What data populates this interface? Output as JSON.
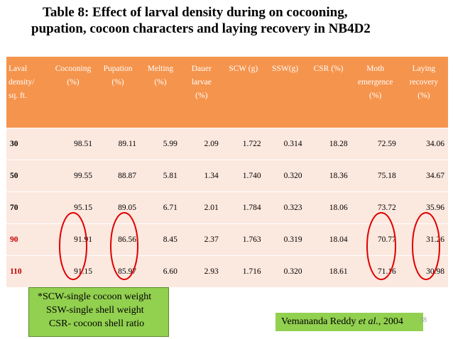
{
  "title": {
    "line1": "Table 8: Effect of larval density during on cocooning,",
    "line2": "pupation, cocoon characters and laying recovery in NB4D2"
  },
  "table": {
    "headers": [
      [
        "Laval",
        "density/",
        "sq. ft."
      ],
      [
        "Cocooning",
        "(%)"
      ],
      [
        "Pupation",
        "(%)"
      ],
      [
        "Melting",
        "(%)"
      ],
      [
        "Dauer",
        "larvae",
        "(%)"
      ],
      [
        "SCW (g)"
      ],
      [
        "SSW(g)"
      ],
      [
        "CSR (%)"
      ],
      [
        "Moth",
        "emergence",
        "(%)"
      ],
      [
        "Laying",
        "recovery",
        "(%)"
      ]
    ],
    "rows": [
      [
        "30",
        "98.51",
        "89.11",
        "5.99",
        "2.09",
        "1.722",
        "0.314",
        "18.28",
        "72.59",
        "34.06"
      ],
      [
        "50",
        "99.55",
        "88.87",
        "5.81",
        "1.34",
        "1.740",
        "0.320",
        "18.36",
        "75.18",
        "34.67"
      ],
      [
        "70",
        "95.15",
        "89.05",
        "6.71",
        "2.01",
        "1.784",
        "0.323",
        "18.06",
        "73.72",
        "35.96"
      ],
      [
        "90",
        "91.91",
        "86.56",
        "8.45",
        "2.37",
        "1.763",
        "0.319",
        "18.04",
        "70.77",
        "31.26"
      ],
      [
        "110",
        "91.15",
        "85.97",
        "6.60",
        "2.93",
        "1.716",
        "0.320",
        "18.61",
        "71.16",
        "30.98"
      ]
    ],
    "highlight_rows": [
      "90",
      "110"
    ]
  },
  "legend": {
    "line1": "*SCW-single cocoon weight",
    "line2": "SSW-single shell weight",
    "line3": "CSR- cocoon shell ratio"
  },
  "citation": {
    "author": "Vemananda Reddy ",
    "etal": "et al.,",
    "year": " 2004"
  },
  "slide_number": "38",
  "colors": {
    "header_bg": "#f5944d",
    "row_bg": "#fbe8df",
    "highlight_text": "#c00000",
    "ellipse": "#e00000",
    "note_bg": "#92d050"
  }
}
